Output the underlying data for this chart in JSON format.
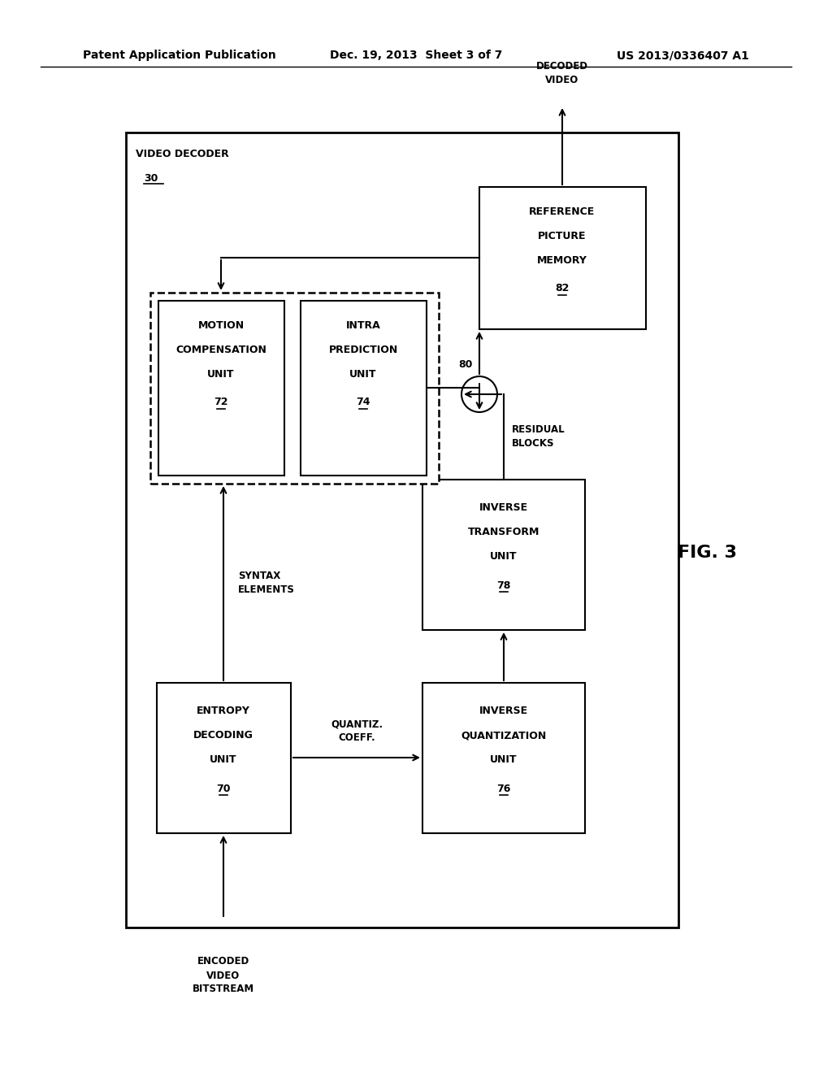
{
  "header_left": "Patent Application Publication",
  "header_mid": "Dec. 19, 2013  Sheet 3 of 7",
  "header_right": "US 2013/0336407 A1",
  "fig_label": "FIG. 3",
  "background_color": "#ffffff",
  "line_color": "#000000",
  "text_color": "#000000"
}
